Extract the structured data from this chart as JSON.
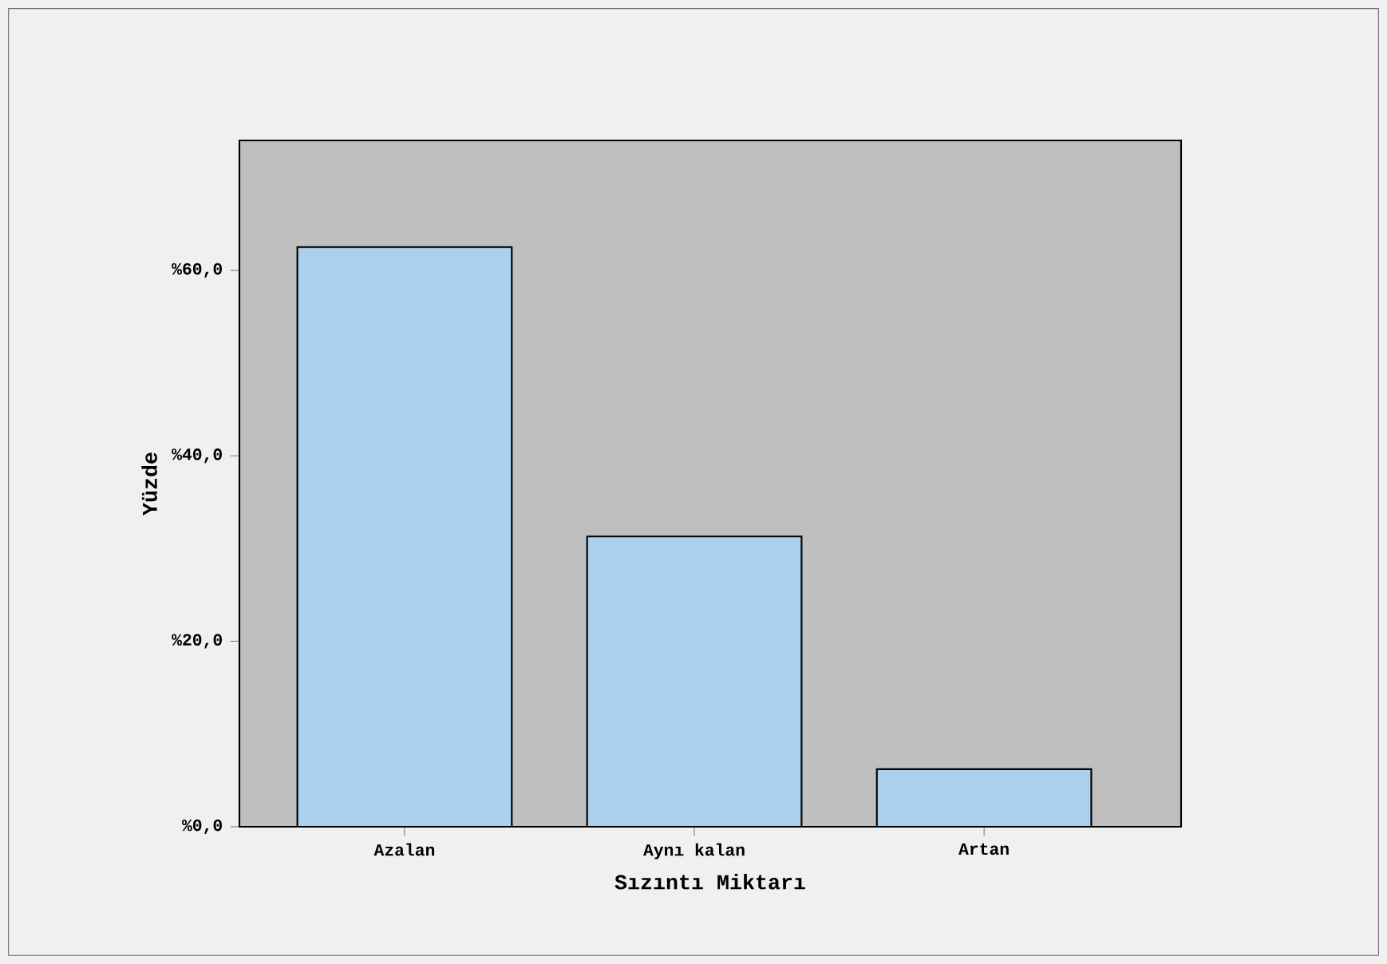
{
  "chart_data": {
    "type": "bar",
    "xlabel": "Sızıntı Miktarı",
    "ylabel": "Yüzde",
    "categories": [
      "Azalan",
      "Aynı kalan",
      "Artan"
    ],
    "values": [
      62.5,
      31.3,
      6.2
    ],
    "color": "#abcfed",
    "ylim": [
      0,
      74
    ],
    "yticks": [
      {
        "value": 0,
        "label": "%0,0"
      },
      {
        "value": 20,
        "label": "%20,0"
      },
      {
        "value": 40,
        "label": "%40,0"
      },
      {
        "value": 60,
        "label": "%60,0"
      }
    ]
  }
}
